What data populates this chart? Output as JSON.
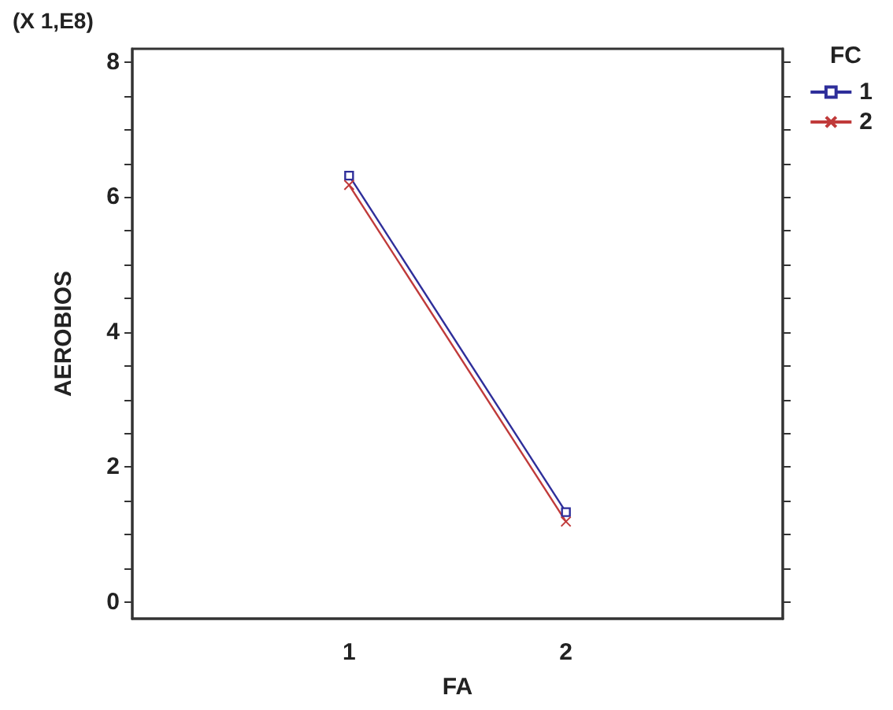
{
  "chart_data": {
    "type": "line",
    "xlabel": "FA",
    "ylabel": "AEROBIOS",
    "legend_title": "FC",
    "annotations": [
      "(X 1,E8)"
    ],
    "categories": [
      "1",
      "2"
    ],
    "series": [
      {
        "name": "1",
        "color": "#2e2e9a",
        "marker": "square",
        "values": [
          6.32,
          1.33
        ]
      },
      {
        "name": "2",
        "color": "#c03a3a",
        "marker": "cross",
        "values": [
          6.18,
          1.19
        ]
      }
    ],
    "ylim": [
      -0.25,
      8.2
    ],
    "yticks": [
      0,
      {
        "value": 0.5,
        "label": null
      },
      {
        "value": 1,
        "label": null
      },
      {
        "value": 1.5,
        "label": null
      },
      2,
      {
        "value": 2.5,
        "label": null
      },
      {
        "value": 3,
        "label": null
      },
      {
        "value": 3.5,
        "label": null
      },
      4,
      {
        "value": 4.5,
        "label": null
      },
      {
        "value": 5,
        "label": null
      },
      {
        "value": 5.5,
        "label": null
      },
      6,
      {
        "value": 6.5,
        "label": null
      },
      {
        "value": 7,
        "label": null
      },
      {
        "value": 7.5,
        "label": null
      },
      8
    ],
    "grid": false,
    "legend": "top right",
    "line_style": "solid"
  }
}
